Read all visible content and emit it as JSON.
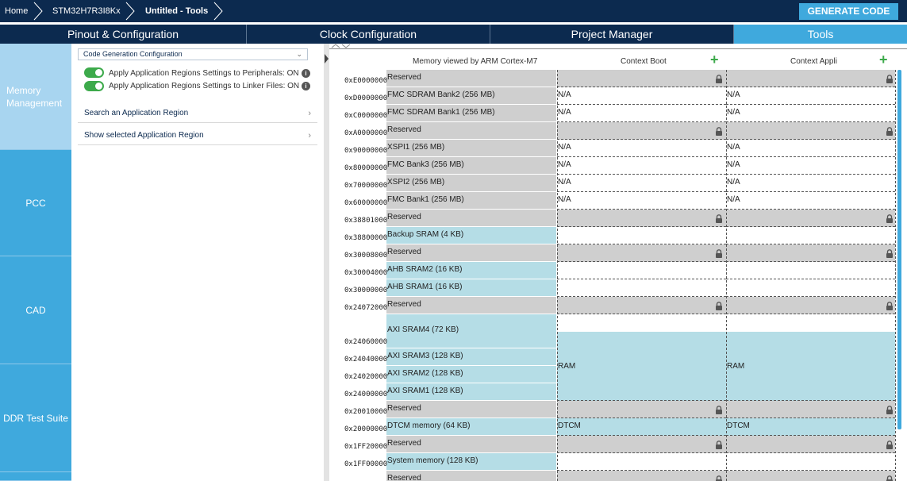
{
  "breadcrumb": {
    "home": "Home",
    "device": "STM32H7R3I8Kx",
    "page": "Untitled - Tools"
  },
  "generate_label": "GENERATE CODE",
  "tabs": [
    "Pinout & Configuration",
    "Clock Configuration",
    "Project Manager",
    "Tools"
  ],
  "sidebar": [
    {
      "label": "Memory Management"
    },
    {
      "label": "PCC"
    },
    {
      "label": "CAD"
    },
    {
      "label": "DDR Test Suite"
    }
  ],
  "config": {
    "select": "Code Generation Configuration",
    "toggle1": "Apply Application Regions Settings to Peripherals: ON",
    "toggle2": "Apply Application Regions Settings to Linker Files: ON",
    "search": "Search an Application Region",
    "show": "Show selected Application Region"
  },
  "memory": {
    "header_view": "Memory viewed by ARM Cortex-M7",
    "header_boot": "Context Boot",
    "header_appli": "Context Appli",
    "rows": [
      {
        "addr": "0xE0000000",
        "name": "Reserved",
        "boot": "",
        "appli": "",
        "type": "reserved"
      },
      {
        "addr": "0xD0000000",
        "name": "FMC SDRAM Bank2 (256 MB)",
        "boot": "N/A",
        "appli": "N/A",
        "type": "ext"
      },
      {
        "addr": "0xC0000000",
        "name": "FMC SDRAM Bank1 (256 MB)",
        "boot": "N/A",
        "appli": "N/A",
        "type": "ext"
      },
      {
        "addr": "0xA0000000",
        "name": "Reserved",
        "boot": "",
        "appli": "",
        "type": "reserved"
      },
      {
        "addr": "0x90000000",
        "name": "XSPI1 (256 MB)",
        "boot": "N/A",
        "appli": "N/A",
        "type": "ext"
      },
      {
        "addr": "0x80000000",
        "name": "FMC Bank3 (256 MB)",
        "boot": "N/A",
        "appli": "N/A",
        "type": "ext"
      },
      {
        "addr": "0x70000000",
        "name": "XSPI2 (256 MB)",
        "boot": "N/A",
        "appli": "N/A",
        "type": "ext"
      },
      {
        "addr": "0x60000000",
        "name": "FMC Bank1 (256 MB)",
        "boot": "N/A",
        "appli": "N/A",
        "type": "ext"
      },
      {
        "addr": "0x38801000",
        "name": "Reserved",
        "boot": "",
        "appli": "",
        "type": "reserved"
      },
      {
        "addr": "0x38800000",
        "name": "Backup SRAM (4 KB)",
        "boot": "",
        "appli": "",
        "type": "ram"
      },
      {
        "addr": "0x30008000",
        "name": "Reserved",
        "boot": "",
        "appli": "",
        "type": "reserved"
      },
      {
        "addr": "0x30004000",
        "name": "AHB SRAM2 (16 KB)",
        "boot": "",
        "appli": "",
        "type": "ram"
      },
      {
        "addr": "0x30000000",
        "name": "AHB SRAM1 (16 KB)",
        "boot": "",
        "appli": "",
        "type": "ram"
      },
      {
        "addr": "0x24072000",
        "name": "Reserved",
        "boot": "",
        "appli": "",
        "type": "reserved"
      },
      {
        "addr": "0x24060000",
        "name": "AXI SRAM4 (72 KB)",
        "boot": "",
        "appli": "",
        "type": "ram"
      },
      {
        "addr": "0x24040000",
        "name": "AXI SRAM3 (128 KB)",
        "boot": "RAM",
        "appli": "RAM",
        "type": "ram"
      },
      {
        "addr": "0x24020000",
        "name": "AXI SRAM2 (128 KB)",
        "boot": "",
        "appli": "",
        "type": "ram"
      },
      {
        "addr": "0x24000000",
        "name": "AXI SRAM1 (128 KB)",
        "boot": "",
        "appli": "",
        "type": "ram"
      },
      {
        "addr": "0x20010000",
        "name": "Reserved",
        "boot": "",
        "appli": "",
        "type": "reserved"
      },
      {
        "addr": "0x20000000",
        "name": "DTCM memory (64 KB)",
        "boot": "DTCM",
        "appli": "DTCM",
        "type": "ram"
      },
      {
        "addr": "0x1FF20000",
        "name": "Reserved",
        "boot": "",
        "appli": "",
        "type": "reserved"
      },
      {
        "addr": "0x1FF00000",
        "name": "System memory (128 KB)",
        "boot": "",
        "appli": "",
        "type": "ram"
      },
      {
        "addr": "",
        "name": "Reserved",
        "boot": "",
        "appli": "",
        "type": "reserved"
      }
    ]
  },
  "colors": {
    "navy": "#0c2a4f",
    "accent": "#3fa9dd",
    "reserved": "#cfcfcf",
    "ram": "#b5dde6",
    "toggle": "#3daa4b"
  }
}
